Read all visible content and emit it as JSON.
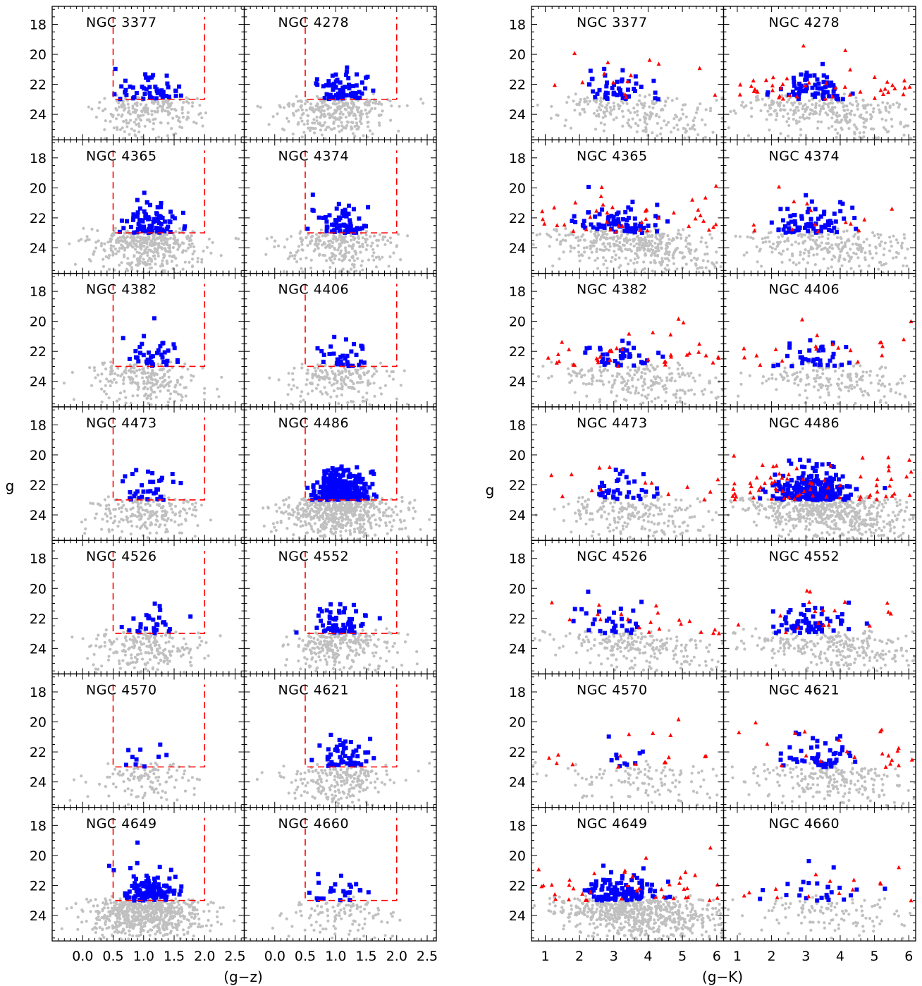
{
  "figure": {
    "background": "#ffffff",
    "colors": {
      "background_points": "#c0c0c0",
      "gc_candidates": "#0000ff",
      "other_sources": "#ff0000",
      "selection_box": "#ff0000",
      "frame": "#000000"
    }
  },
  "chart_data": [
    {
      "type": "scatter",
      "panel_group": "left",
      "xlabel": "(g−z)",
      "ylabel": "g",
      "xlim": [
        -0.5,
        2.65
      ],
      "ylim": [
        25.7,
        16.8
      ],
      "x_tick_labels": [
        "0.0",
        "0.5",
        "1.0",
        "1.5",
        "2.0",
        "2.5"
      ],
      "y_tick_labels": [
        "18",
        "20",
        "22",
        "24"
      ],
      "selection_box": {
        "x_range": [
          0.5,
          2.0
        ],
        "g_range": [
          17.5,
          23.0
        ],
        "style": "dashed"
      },
      "markers": {
        "background": "gray dots",
        "selected": "blue squares"
      },
      "panels": [
        {
          "name": "NGC 3377"
        },
        {
          "name": "NGC 4278"
        },
        {
          "name": "NGC 4365"
        },
        {
          "name": "NGC 4374"
        },
        {
          "name": "NGC 4382"
        },
        {
          "name": "NGC 4406"
        },
        {
          "name": "NGC 4473"
        },
        {
          "name": "NGC 4486"
        },
        {
          "name": "NGC 4526"
        },
        {
          "name": "NGC 4552"
        },
        {
          "name": "NGC 4570"
        },
        {
          "name": "NGC 4621"
        },
        {
          "name": "NGC 4649"
        },
        {
          "name": "NGC 4660"
        }
      ]
    },
    {
      "type": "scatter",
      "panel_group": "right",
      "xlabel": "(g−K)",
      "ylabel": "g",
      "xlim": [
        0.6,
        6.2
      ],
      "ylim": [
        25.7,
        16.8
      ],
      "x_tick_labels": [
        "1",
        "2",
        "3",
        "4",
        "5",
        "6"
      ],
      "y_tick_labels": [
        "18",
        "20",
        "22",
        "24"
      ],
      "markers": {
        "background": "gray dots",
        "selected": "blue squares",
        "other": "red triangles"
      },
      "panels": [
        {
          "name": "NGC 3377"
        },
        {
          "name": "NGC 4278"
        },
        {
          "name": "NGC 4365"
        },
        {
          "name": "NGC 4374"
        },
        {
          "name": "NGC 4382"
        },
        {
          "name": "NGC 4406"
        },
        {
          "name": "NGC 4473"
        },
        {
          "name": "NGC 4486"
        },
        {
          "name": "NGC 4526"
        },
        {
          "name": "NGC 4552"
        },
        {
          "name": "NGC 4570"
        },
        {
          "name": "NGC 4621"
        },
        {
          "name": "NGC 4649"
        },
        {
          "name": "NGC 4660"
        }
      ]
    }
  ]
}
